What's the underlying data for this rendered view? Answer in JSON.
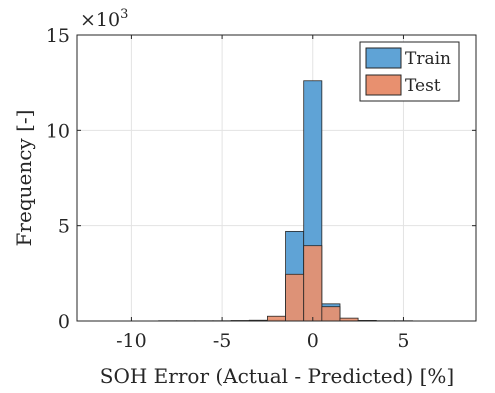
{
  "chart_data": {
    "type": "histogram",
    "xlabel": "SOH Error (Actual - Predicted) [%]",
    "ylabel": "Frequency [-]",
    "y_multiplier_label": {
      "base": "×10",
      "exponent": "3"
    },
    "xlim": [
      -13,
      9
    ],
    "ylim": [
      0,
      15000
    ],
    "x_ticks": [
      -10,
      -5,
      0,
      5
    ],
    "x_tick_labels": [
      "-10",
      "-5",
      "0",
      "5"
    ],
    "y_ticks": [
      0,
      5000,
      10000,
      15000
    ],
    "y_tick_labels": [
      "0",
      "5",
      "10",
      "15"
    ],
    "grid": true,
    "legend_position": "top-right",
    "bin_edges": [
      -12.5,
      -11.5,
      -10.5,
      -9.5,
      -8.5,
      -7.5,
      -6.5,
      -5.5,
      -4.5,
      -3.5,
      -2.5,
      -1.5,
      -0.5,
      0.5,
      1.5,
      2.5,
      3.5,
      4.5,
      5.5,
      6.5,
      7.5
    ],
    "series": [
      {
        "name": "Train",
        "color": "#5fa3d6",
        "values": [
          5,
          5,
          5,
          5,
          10,
          10,
          10,
          10,
          20,
          30,
          50,
          4700,
          12600,
          900,
          30,
          20,
          10,
          10,
          5,
          5
        ]
      },
      {
        "name": "Test",
        "color": "#e8906f",
        "values": [
          5,
          5,
          5,
          5,
          10,
          10,
          10,
          10,
          20,
          40,
          250,
          2450,
          3950,
          750,
          150,
          30,
          10,
          10,
          5,
          5
        ]
      }
    ]
  }
}
